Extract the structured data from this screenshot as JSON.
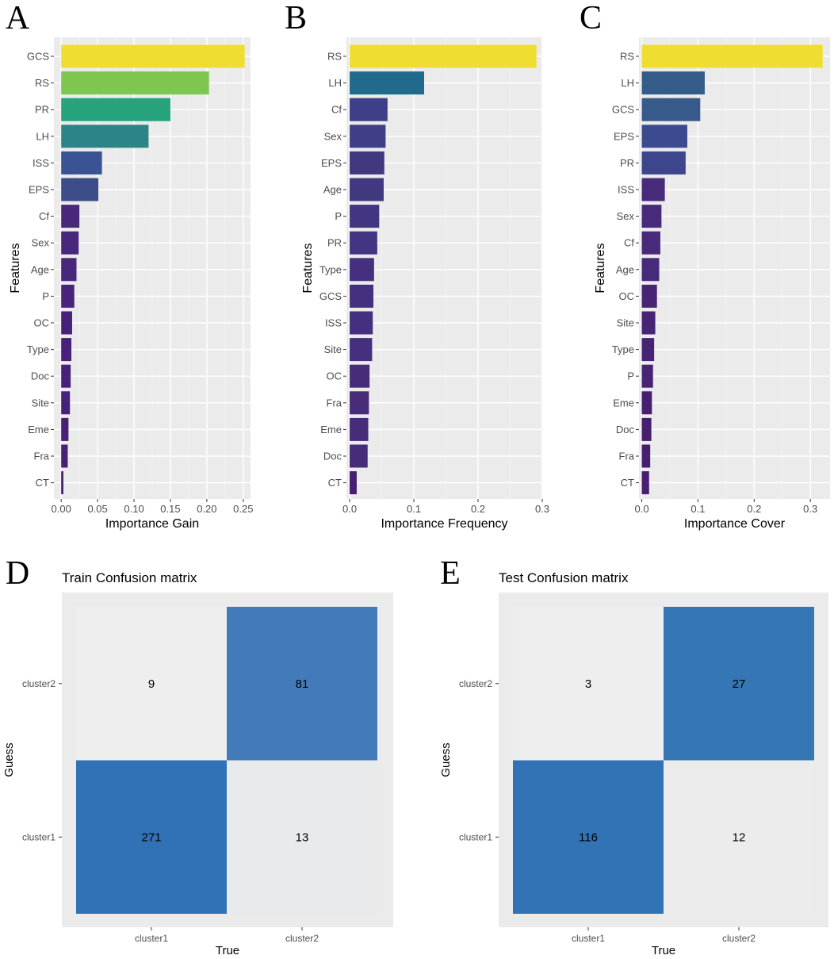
{
  "chart_data": [
    {
      "panel": "A",
      "type": "bar",
      "orientation": "horizontal",
      "categories": [
        "GCS",
        "RS",
        "PR",
        "LH",
        "ISS",
        "EPS",
        "Cf",
        "Sex",
        "Age",
        "P",
        "OC",
        "Type",
        "Doc",
        "Site",
        "Eme",
        "Fra",
        "CT"
      ],
      "values": [
        0.252,
        0.203,
        0.15,
        0.12,
        0.056,
        0.051,
        0.025,
        0.024,
        0.021,
        0.018,
        0.015,
        0.014,
        0.013,
        0.012,
        0.01,
        0.009,
        0.003
      ],
      "colors": [
        "#f0dd32",
        "#7ec650",
        "#26a37d",
        "#2d8486",
        "#3a5393",
        "#3d4d8a",
        "#48287a",
        "#48287a",
        "#48287a",
        "#48257a",
        "#48227a",
        "#48227a",
        "#48227a",
        "#48227a",
        "#482074",
        "#482074",
        "#471e70"
      ],
      "xlabel": "Importance Gain",
      "ylabel": "Features",
      "xlim": [
        -0.01,
        0.26
      ],
      "xticks": [
        "0.00",
        "0.05",
        "0.10",
        "0.15",
        "0.20",
        "0.25"
      ],
      "xtick_values": [
        0,
        0.05,
        0.1,
        0.15,
        0.2,
        0.25
      ]
    },
    {
      "panel": "B",
      "type": "bar",
      "orientation": "horizontal",
      "categories": [
        "RS",
        "LH",
        "Cf",
        "Sex",
        "EPS",
        "Age",
        "P",
        "PR",
        "Type",
        "GCS",
        "ISS",
        "Site",
        "OC",
        "Fra",
        "Eme",
        "Doc",
        "CT"
      ],
      "values": [
        0.291,
        0.116,
        0.059,
        0.056,
        0.054,
        0.053,
        0.046,
        0.043,
        0.038,
        0.037,
        0.036,
        0.035,
        0.031,
        0.03,
        0.029,
        0.028,
        0.011
      ],
      "colors": [
        "#f0dd32",
        "#206b8c",
        "#3e3f87",
        "#3e3f87",
        "#41397f",
        "#41397f",
        "#433582",
        "#433582",
        "#44307e",
        "#44307e",
        "#44307e",
        "#44307e",
        "#472c7a",
        "#472c7a",
        "#472c7a",
        "#472c7a",
        "#471e70"
      ],
      "xlabel": "Importance Frequency",
      "ylabel": "Features",
      "xlim": [
        -0.005,
        0.3
      ],
      "xticks": [
        "0.0",
        "0.1",
        "0.2",
        "0.3"
      ],
      "xtick_values": [
        0,
        0.1,
        0.2,
        0.3
      ]
    },
    {
      "panel": "C",
      "type": "bar",
      "orientation": "horizontal",
      "categories": [
        "RS",
        "LH",
        "GCS",
        "EPS",
        "PR",
        "ISS",
        "Sex",
        "Cf",
        "Age",
        "OC",
        "Site",
        "Type",
        "P",
        "Eme",
        "Doc",
        "Fra",
        "CT"
      ],
      "values": [
        0.322,
        0.112,
        0.104,
        0.081,
        0.078,
        0.041,
        0.035,
        0.033,
        0.031,
        0.027,
        0.024,
        0.022,
        0.02,
        0.018,
        0.017,
        0.015,
        0.013
      ],
      "colors": [
        "#f0dd32",
        "#345c88",
        "#385a8b",
        "#3c4b8f",
        "#3d468c",
        "#482a7a",
        "#482a7a",
        "#482a7a",
        "#482a7a",
        "#482474",
        "#482474",
        "#482474",
        "#482474",
        "#481f70",
        "#481f70",
        "#481f70",
        "#481f70"
      ],
      "xlabel": "Importance Cover",
      "ylabel": "Features",
      "xlim": [
        -0.005,
        0.335
      ],
      "xticks": [
        "0.0",
        "0.1",
        "0.2",
        "0.3"
      ],
      "xtick_values": [
        0,
        0.1,
        0.2,
        0.3
      ]
    },
    {
      "panel": "D",
      "type": "heatmap",
      "title": "Train Confusion matrix",
      "xlabel": "True",
      "ylabel": "Guess",
      "x_categories": [
        "cluster1",
        "cluster2"
      ],
      "y_categories": [
        "cluster1",
        "cluster2"
      ],
      "cells": [
        {
          "true": "cluster1",
          "guess": "cluster2",
          "value": 9,
          "color": "#eeeeee"
        },
        {
          "true": "cluster2",
          "guess": "cluster2",
          "value": 81,
          "color": "#437ab9"
        },
        {
          "true": "cluster1",
          "guess": "cluster1",
          "value": 271,
          "color": "#3172b6"
        },
        {
          "true": "cluster2",
          "guess": "cluster1",
          "value": 13,
          "color": "#e9eaec"
        }
      ]
    },
    {
      "panel": "E",
      "type": "heatmap",
      "title": "Test Confusion matrix",
      "xlabel": "True",
      "ylabel": "Guess",
      "x_categories": [
        "cluster1",
        "cluster2"
      ],
      "y_categories": [
        "cluster1",
        "cluster2"
      ],
      "cells": [
        {
          "true": "cluster1",
          "guess": "cluster2",
          "value": 3,
          "color": "#eeeeee"
        },
        {
          "true": "cluster2",
          "guess": "cluster2",
          "value": 27,
          "color": "#3576b4"
        },
        {
          "true": "cluster1",
          "guess": "cluster1",
          "value": 116,
          "color": "#3273b6"
        },
        {
          "true": "cluster2",
          "guess": "cluster1",
          "value": 12,
          "color": "#ececec"
        }
      ]
    }
  ],
  "colors": {
    "panel_background": "#ebebeb",
    "gridline": "#ffffff",
    "tick_text": "#4d4d4d"
  }
}
